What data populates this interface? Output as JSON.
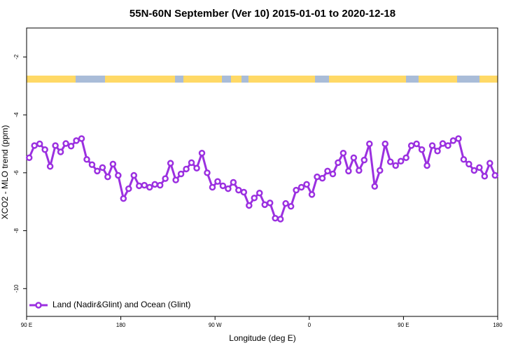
{
  "chart_data": {
    "type": "line",
    "title": "55N-60N September (Ver 10)   2015-01-01 to 2020-12-18",
    "xlabel": "Longitude (deg E)",
    "ylabel": "XCO2 - MLO trend (ppm)",
    "xlim": [
      90,
      540
    ],
    "ylim": [
      -10.96,
      -1.0
    ],
    "xticks": [
      {
        "value": 90,
        "label": "90 E"
      },
      180,
      {
        "value": 270,
        "label": "90 W"
      },
      {
        "value": 360,
        "label": "0"
      },
      {
        "value": 450,
        "label": "90 E"
      },
      {
        "value": 540,
        "label": "180"
      }
    ],
    "yticks": [
      -2,
      -4,
      -6,
      -8,
      -10
    ],
    "legend": "lower left",
    "x": [
      92.5,
      97.5,
      102.5,
      107.5,
      112.5,
      117.5,
      122.5,
      127.5,
      132.5,
      137.5,
      142.5,
      147.5,
      152.5,
      157.5,
      162.5,
      167.5,
      172.5,
      177.5,
      182.5,
      187.5,
      192.5,
      197.5,
      202.5,
      207.5,
      212.5,
      217.5,
      222.5,
      227.5,
      232.5,
      237.5,
      242.5,
      247.5,
      252.5,
      257.5,
      262.5,
      267.5,
      272.5,
      277.5,
      282.5,
      287.5,
      292.5,
      297.5,
      302.5,
      307.5,
      312.5,
      317.5,
      322.5,
      327.5,
      332.5,
      337.5,
      342.5,
      347.5,
      352.5,
      357.5,
      362.5,
      367.5,
      372.5,
      377.5,
      382.5,
      387.5,
      392.5,
      397.5,
      402.5,
      407.5,
      412.5,
      417.5,
      422.5,
      427.5,
      432.5,
      437.5,
      442.5,
      447.5,
      452.5,
      457.5,
      462.5,
      467.5,
      472.5,
      477.5,
      482.5,
      487.5,
      492.5,
      497.5,
      502.5,
      507.5,
      512.5,
      517.5,
      522.5,
      527.5,
      532.5,
      537.5
    ],
    "series": [
      {
        "name": "Land (Nadir&Glint) and Ocean (Glint)",
        "color": "#9b30e0",
        "values": [
          -5.48,
          -5.06,
          -5.0,
          -5.2,
          -5.78,
          -5.06,
          -5.28,
          -4.99,
          -5.08,
          -4.89,
          -4.82,
          -5.54,
          -5.72,
          -5.94,
          -5.82,
          -6.14,
          -5.7,
          -6.09,
          -6.89,
          -6.55,
          -6.09,
          -6.45,
          -6.43,
          -6.5,
          -6.4,
          -6.43,
          -6.2,
          -5.67,
          -6.25,
          -6.04,
          -5.87,
          -5.65,
          -5.84,
          -5.32,
          -6.0,
          -6.5,
          -6.3,
          -6.45,
          -6.55,
          -6.33,
          -6.6,
          -6.67,
          -7.13,
          -6.87,
          -6.7,
          -7.1,
          -7.04,
          -7.57,
          -7.6,
          -7.06,
          -7.16,
          -6.6,
          -6.5,
          -6.4,
          -6.75,
          -6.14,
          -6.19,
          -5.94,
          -6.04,
          -5.65,
          -5.32,
          -5.94,
          -5.48,
          -5.92,
          -5.56,
          -5.0,
          -6.47,
          -5.92,
          -5.0,
          -5.62,
          -5.75,
          -5.6,
          -5.48,
          -5.06,
          -5.0,
          -5.2,
          -5.75,
          -5.06,
          -5.25,
          -4.99,
          -5.06,
          -4.89,
          -4.82,
          -5.54,
          -5.7,
          -5.92,
          -5.82,
          -6.12,
          -5.67,
          -6.09
        ]
      }
    ]
  }
}
